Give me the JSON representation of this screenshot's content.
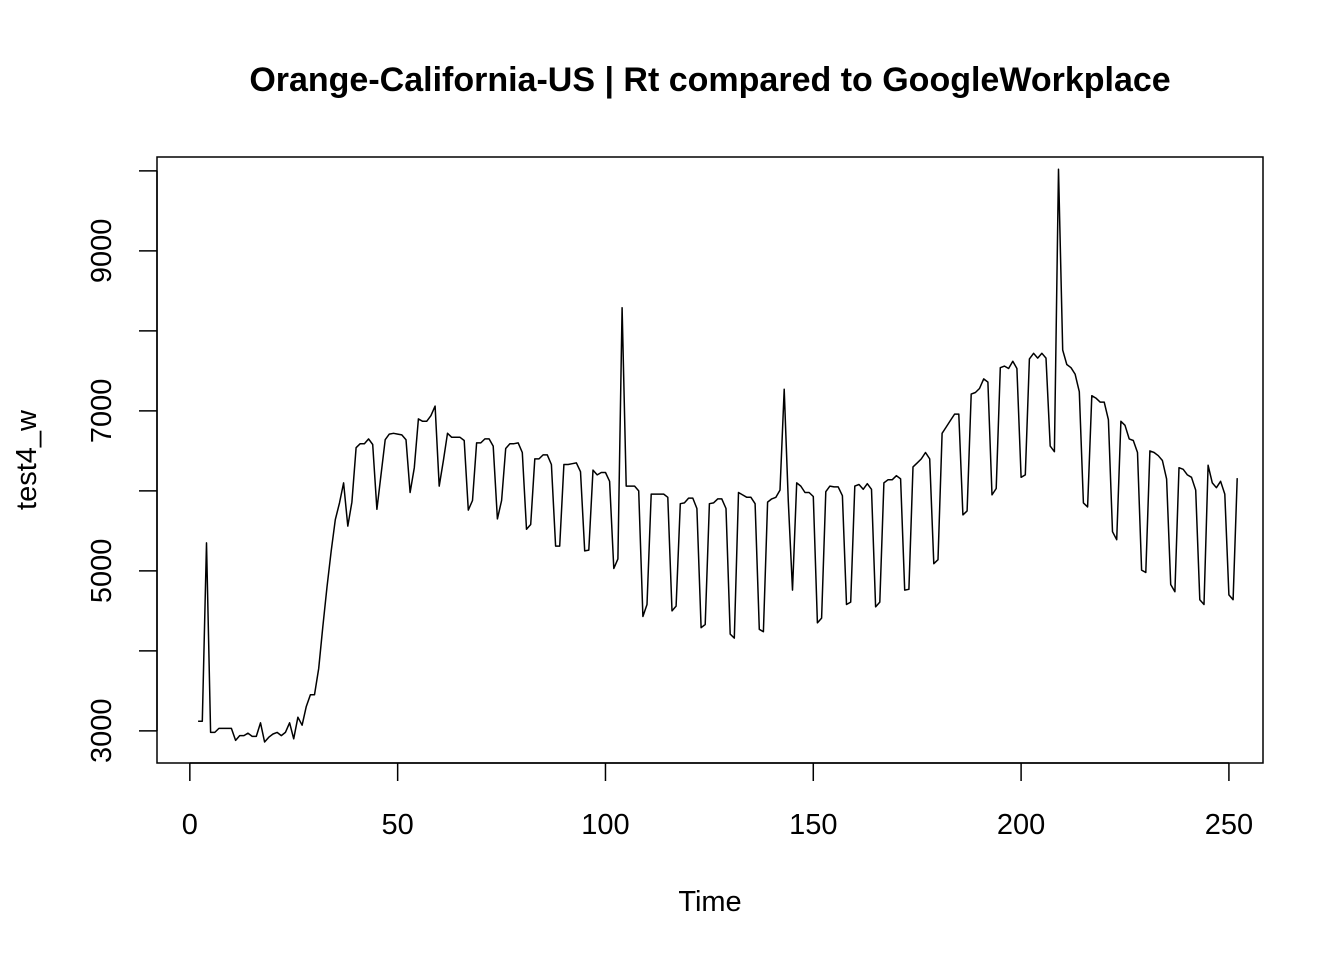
{
  "chart_data": {
    "type": "line",
    "title": "Orange-California-US | Rt compared to GoogleWorkplace",
    "xlabel": "Time",
    "ylabel": "test4_w",
    "xlim": [
      -7.9,
      258.2
    ],
    "ylim": [
      2598,
      10174
    ],
    "x_ticks": [
      0,
      50,
      100,
      150,
      200,
      250
    ],
    "x_tick_labels": [
      "0",
      "50",
      "100",
      "150",
      "200",
      "250"
    ],
    "y_ticks": [
      3000,
      4000,
      5000,
      6000,
      7000,
      8000,
      9000,
      10000
    ],
    "y_tick_labels": [
      "3000",
      "",
      "5000",
      "",
      "7000",
      "",
      "9000",
      ""
    ],
    "grid": false,
    "legend": "none",
    "line_color": "#000000",
    "x_start": 2,
    "values": [
      3120,
      3120,
      5350,
      2980,
      2980,
      3030,
      3030,
      3030,
      3030,
      2880,
      2940,
      2940,
      2970,
      2930,
      2930,
      3100,
      2860,
      2920,
      2960,
      2980,
      2940,
      2980,
      3100,
      2900,
      3170,
      3070,
      3300,
      3450,
      3450,
      3780,
      4300,
      4800,
      5250,
      5640,
      5850,
      6100,
      5560,
      5860,
      6540,
      6590,
      6590,
      6650,
      6580,
      5770,
      6200,
      6640,
      6710,
      6720,
      6710,
      6700,
      6640,
      5980,
      6290,
      6900,
      6870,
      6870,
      6940,
      7060,
      6060,
      6380,
      6720,
      6670,
      6670,
      6670,
      6630,
      5760,
      5880,
      6600,
      6600,
      6650,
      6650,
      6560,
      5650,
      5880,
      6530,
      6590,
      6590,
      6600,
      6480,
      5520,
      5580,
      6400,
      6400,
      6450,
      6450,
      6330,
      5310,
      5310,
      6330,
      6330,
      6340,
      6350,
      6240,
      5250,
      5260,
      6260,
      6200,
      6230,
      6230,
      6120,
      5030,
      5150,
      8290,
      6060,
      6060,
      6060,
      6000,
      4430,
      4580,
      5960,
      5960,
      5960,
      5960,
      5920,
      4500,
      4560,
      5840,
      5850,
      5910,
      5910,
      5780,
      4290,
      4330,
      5840,
      5850,
      5900,
      5900,
      5780,
      4210,
      4160,
      5980,
      5950,
      5920,
      5920,
      5840,
      4270,
      4240,
      5860,
      5900,
      5920,
      6010,
      7270,
      5870,
      4760,
      6100,
      6060,
      5980,
      5980,
      5930,
      4350,
      4410,
      5990,
      6060,
      6050,
      6050,
      5940,
      4580,
      4610,
      6060,
      6080,
      6020,
      6090,
      6020,
      4550,
      4610,
      6100,
      6140,
      6140,
      6190,
      6150,
      4760,
      4770,
      6300,
      6350,
      6400,
      6480,
      6400,
      5090,
      5140,
      6720,
      6800,
      6880,
      6960,
      6960,
      5700,
      5750,
      7210,
      7230,
      7280,
      7400,
      7360,
      5950,
      6030,
      7540,
      7560,
      7530,
      7620,
      7530,
      6170,
      6200,
      7650,
      7720,
      7660,
      7720,
      7660,
      6560,
      6490,
      10020,
      7760,
      7580,
      7540,
      7460,
      7240,
      5850,
      5800,
      7190,
      7160,
      7110,
      7110,
      6890,
      5490,
      5390,
      6870,
      6820,
      6650,
      6630,
      6480,
      5010,
      4980,
      6500,
      6480,
      6440,
      6380,
      6150,
      4830,
      4740,
      6290,
      6270,
      6200,
      6170,
      6010,
      4640,
      4580,
      6320,
      6100,
      6040,
      6120,
      5960,
      4700,
      4640,
      6160
    ]
  }
}
